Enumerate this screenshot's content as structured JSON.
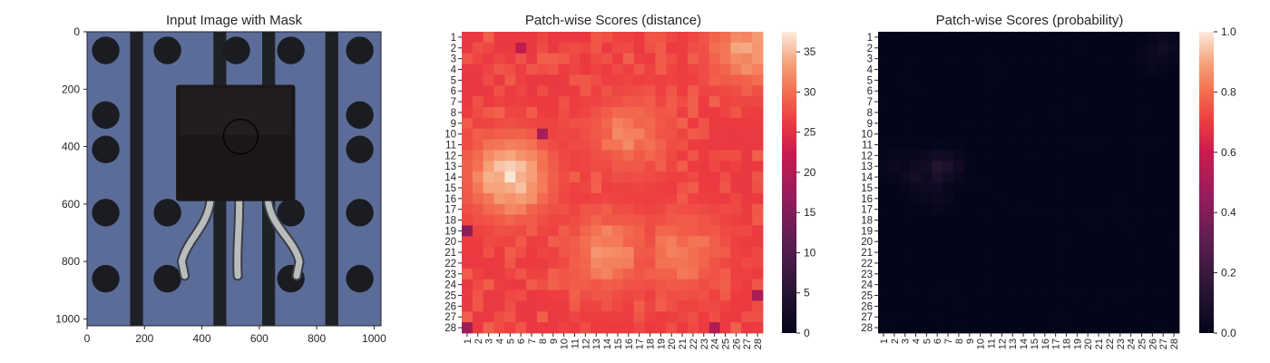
{
  "chart_data": [
    {
      "type": "image",
      "title": "Input Image with Mask",
      "xlim": [
        0,
        1024
      ],
      "ylim": [
        1024,
        0
      ],
      "xticks": [
        0,
        200,
        400,
        600,
        800,
        1000
      ],
      "yticks": [
        0,
        200,
        400,
        600,
        800,
        1000
      ],
      "colors": {
        "background": "#5c6c98",
        "stripe": "#1e2126",
        "hole": "#1a1c22",
        "component_body": "#1b1719",
        "lead": "#b9bcbd"
      }
    },
    {
      "type": "heatmap",
      "title": "Patch-wise Scores (distance)",
      "x_labels": [
        "1",
        "2",
        "3",
        "4",
        "5",
        "6",
        "7",
        "8",
        "9",
        "10",
        "11",
        "12",
        "13",
        "14",
        "15",
        "16",
        "17",
        "18",
        "19",
        "20",
        "21",
        "22",
        "23",
        "24",
        "25",
        "26",
        "27",
        "28"
      ],
      "y_labels": [
        "1",
        "2",
        "3",
        "4",
        "5",
        "6",
        "7",
        "8",
        "9",
        "10",
        "11",
        "12",
        "13",
        "14",
        "15",
        "16",
        "17",
        "18",
        "19",
        "20",
        "21",
        "22",
        "23",
        "24",
        "25",
        "26",
        "27",
        "28"
      ],
      "baseline": 26,
      "hotspots": [
        {
          "row": 14,
          "col": 5,
          "value": 36
        },
        {
          "row": 21,
          "col": 14,
          "value": 32
        },
        {
          "row": 10,
          "col": 16,
          "value": 31
        },
        {
          "row": 21,
          "col": 21,
          "value": 31
        },
        {
          "row": 2,
          "col": 27,
          "value": 33
        }
      ],
      "low_cells": [
        {
          "row": 19,
          "col": 1,
          "value": 16
        },
        {
          "row": 28,
          "col": 1,
          "value": 18
        },
        {
          "row": 10,
          "col": 8,
          "value": 19
        },
        {
          "row": 25,
          "col": 28,
          "value": 19
        },
        {
          "row": 28,
          "col": 24,
          "value": 20
        },
        {
          "row": 2,
          "col": 6,
          "value": 21
        }
      ],
      "colorbar": {
        "min": 0,
        "max": 37.5,
        "ticks": [
          0,
          5,
          10,
          15,
          20,
          25,
          30,
          35
        ]
      }
    },
    {
      "type": "heatmap",
      "title": "Patch-wise Scores (probability)",
      "x_labels": [
        "1",
        "2",
        "3",
        "4",
        "5",
        "6",
        "7",
        "8",
        "9",
        "10",
        "11",
        "12",
        "13",
        "14",
        "15",
        "16",
        "17",
        "18",
        "19",
        "20",
        "21",
        "22",
        "23",
        "24",
        "25",
        "26",
        "27",
        "28"
      ],
      "y_labels": [
        "1",
        "2",
        "3",
        "4",
        "5",
        "6",
        "7",
        "8",
        "9",
        "10",
        "11",
        "12",
        "13",
        "14",
        "15",
        "16",
        "17",
        "18",
        "19",
        "20",
        "21",
        "22",
        "23",
        "24",
        "25",
        "26",
        "27",
        "28"
      ],
      "baseline": 0.0,
      "hotspots": [
        {
          "row": 13,
          "col": 6,
          "value": 0.12
        },
        {
          "row": 13,
          "col": 7,
          "value": 0.1
        },
        {
          "row": 14,
          "col": 6,
          "value": 0.09
        },
        {
          "row": 14,
          "col": 4,
          "value": 0.07
        },
        {
          "row": 13,
          "col": 4,
          "value": 0.05
        },
        {
          "row": 15,
          "col": 5,
          "value": 0.05
        },
        {
          "row": 2,
          "col": 27,
          "value": 0.06
        },
        {
          "row": 3,
          "col": 26,
          "value": 0.04
        },
        {
          "row": 13,
          "col": 2,
          "value": 0.04
        },
        {
          "row": 16,
          "col": 6,
          "value": 0.04
        }
      ],
      "colorbar": {
        "min": 0.0,
        "max": 1.0,
        "ticks": [
          "0.0",
          "0.2",
          "0.4",
          "0.6",
          "0.8",
          "1.0"
        ]
      }
    }
  ]
}
